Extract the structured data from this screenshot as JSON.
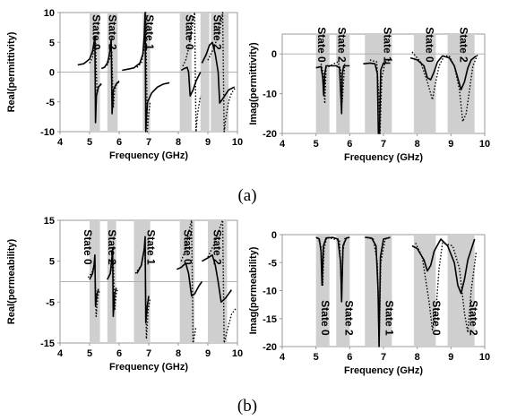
{
  "figure": {
    "caption_a": "(a)",
    "caption_b": "(b)"
  },
  "chart_data": [
    {
      "type": "line",
      "ylabel": "Real(permittivity)",
      "xlabel": "Frequency (GHz)",
      "xlim": [
        4,
        10
      ],
      "ylim": [
        -10,
        10
      ],
      "xticks": [
        "4",
        "5",
        "6",
        "7",
        "8",
        "9",
        "10"
      ],
      "yticks": [
        "10",
        "5",
        "0",
        "-5",
        "-10"
      ],
      "grid": false,
      "bands": [
        [
          5.0,
          5.35
        ],
        [
          5.6,
          5.95
        ],
        [
          6.8,
          7.05
        ],
        [
          8.05,
          8.45
        ],
        [
          8.75,
          9.05
        ],
        [
          9.1,
          9.7
        ]
      ],
      "labels": [
        {
          "text": "State 0",
          "x": 5.2
        },
        {
          "text": "State 2",
          "x": 5.75
        },
        {
          "text": "State 1",
          "x": 7.0
        },
        {
          "text": "State 0",
          "x": 8.35
        },
        {
          "text": "State 2",
          "x": 9.3
        }
      ],
      "series": [
        {
          "style": "solid",
          "x": [
            4.6,
            4.8,
            5.0,
            5.1,
            5.15,
            5.18,
            5.2,
            5.23,
            5.3,
            5.4
          ],
          "y": [
            1.2,
            1.4,
            2.2,
            3.5,
            5.0,
            6.0,
            -8.5,
            -4.0,
            -2.5,
            -2.0
          ]
        },
        {
          "style": "dotted",
          "x": [
            5.0,
            5.1,
            5.15,
            5.2,
            5.25,
            5.3,
            5.4
          ],
          "y": [
            1.5,
            2.5,
            4.0,
            5.0,
            -3.5,
            -2.5,
            -1.8
          ]
        },
        {
          "style": "solid",
          "x": [
            5.4,
            5.5,
            5.6,
            5.65,
            5.7,
            5.73,
            5.76,
            5.8,
            5.9,
            6.0
          ],
          "y": [
            0.6,
            0.8,
            1.5,
            2.5,
            4.0,
            5.5,
            -7.0,
            -3.0,
            -2.0,
            -1.5
          ]
        },
        {
          "style": "dotted",
          "x": [
            5.5,
            5.6,
            5.7,
            5.75,
            5.8,
            5.85,
            5.9,
            6.0
          ],
          "y": [
            0.8,
            1.2,
            2.5,
            3.5,
            -6.0,
            -3.0,
            -2.2,
            -1.6
          ]
        },
        {
          "style": "solid",
          "x": [
            6.1,
            6.3,
            6.5,
            6.7,
            6.8,
            6.85,
            6.88,
            6.9,
            6.93,
            6.96
          ],
          "y": [
            0.3,
            0.5,
            0.7,
            1.5,
            3.0,
            6.0,
            10.0,
            -10.0,
            -7.0,
            -5.0
          ]
        },
        {
          "style": "dotted",
          "x": [
            6.6,
            6.75,
            6.85,
            6.9,
            6.95,
            7.0,
            7.05
          ],
          "y": [
            0.8,
            1.5,
            4.0,
            10.0,
            -10.0,
            -7.0,
            -5.0
          ]
        },
        {
          "style": "solid",
          "x": [
            6.96,
            7.1,
            7.3,
            7.5,
            7.7
          ],
          "y": [
            -5.0,
            -3.5,
            -2.5,
            -2.0,
            -1.8
          ]
        },
        {
          "style": "solid",
          "x": [
            8.1,
            8.2,
            8.3,
            8.35,
            8.4,
            8.5,
            8.6,
            8.75
          ],
          "y": [
            0.3,
            0.6,
            0.8,
            0.0,
            -4.0,
            -3.0,
            -1.5,
            0.0
          ]
        },
        {
          "style": "dotted",
          "x": [
            8.15,
            8.25,
            8.35,
            8.45,
            8.55,
            8.6,
            8.65,
            8.75
          ],
          "y": [
            1.0,
            2.0,
            4.0,
            7.0,
            10.0,
            -10.0,
            -7.0,
            -4.0
          ]
        },
        {
          "style": "solid",
          "x": [
            8.8,
            8.95,
            9.05,
            9.15,
            9.25,
            9.35,
            9.4,
            9.5,
            9.7,
            9.9
          ],
          "y": [
            1.5,
            3.0,
            4.5,
            5.0,
            3.0,
            0.0,
            -5.2,
            -4.5,
            -3.0,
            -2.5
          ]
        },
        {
          "style": "dotted",
          "x": [
            9.0,
            9.2,
            9.4,
            9.5,
            9.55,
            9.6,
            9.7,
            9.8,
            9.95
          ],
          "y": [
            2.0,
            4.0,
            7.0,
            10.0,
            -10.0,
            -8.0,
            -5.0,
            -3.5,
            -2.5
          ]
        }
      ]
    },
    {
      "type": "line",
      "ylabel": "Imag(permittivity)",
      "xlabel": "Frequency (GHz)",
      "xlim": [
        4,
        10
      ],
      "ylim": [
        -20,
        5
      ],
      "xticks": [
        "4",
        "5",
        "6",
        "7",
        "8",
        "9",
        "10"
      ],
      "yticks": [
        "0",
        "-10",
        "-20"
      ],
      "grid": false,
      "bands": [
        [
          5.0,
          5.4
        ],
        [
          5.6,
          6.0
        ],
        [
          6.45,
          7.25
        ],
        [
          7.9,
          8.55
        ],
        [
          8.9,
          9.7
        ]
      ],
      "labels": [
        {
          "text": "State 0",
          "x": 5.15
        },
        {
          "text": "State 2",
          "x": 5.75
        },
        {
          "text": "State 1",
          "x": 7.1
        },
        {
          "text": "State 0",
          "x": 8.35
        },
        {
          "text": "State 2",
          "x": 9.35
        }
      ],
      "series": [
        {
          "style": "solid",
          "x": [
            5.0,
            5.15,
            5.2,
            5.23,
            5.26,
            5.3,
            5.45,
            5.6,
            5.7,
            5.76,
            5.78,
            5.82,
            5.9,
            6.0
          ],
          "y": [
            -3.5,
            -3.2,
            -6.0,
            -10.5,
            -5.0,
            -3.0,
            -3.0,
            -3.0,
            -3.5,
            -15.0,
            -5.0,
            -3.0,
            -3.0,
            -3.0
          ]
        },
        {
          "style": "dotted",
          "x": [
            5.15,
            5.22,
            5.26,
            5.3,
            5.65,
            5.73,
            5.78,
            5.85
          ],
          "y": [
            -2.5,
            -5.0,
            -12.5,
            -3.5,
            -2.0,
            -4.0,
            -12.0,
            -2.5
          ]
        },
        {
          "style": "solid",
          "x": [
            6.4,
            6.6,
            6.75,
            6.82,
            6.85,
            6.88,
            6.92,
            7.0,
            7.2
          ],
          "y": [
            -2.5,
            -2.3,
            -2.5,
            -5.0,
            -20.0,
            -20.0,
            -4.0,
            -2.3,
            -2.3
          ]
        },
        {
          "style": "dotted",
          "x": [
            6.6,
            6.8,
            6.86,
            6.9,
            6.95,
            7.05,
            7.2,
            7.3
          ],
          "y": [
            -1.5,
            -2.0,
            -10.0,
            -20.0,
            -6.0,
            -2.0,
            -1.5,
            -1.5
          ]
        },
        {
          "style": "solid",
          "x": [
            7.8,
            8.0,
            8.2,
            8.3,
            8.4,
            8.5,
            8.6,
            8.75,
            8.95,
            9.1,
            9.2,
            9.3,
            9.4,
            9.5,
            9.6,
            9.75
          ],
          "y": [
            -1.0,
            -1.5,
            -3.0,
            -6.0,
            -6.5,
            -4.5,
            -2.0,
            -0.5,
            -1.0,
            -3.0,
            -6.0,
            -9.0,
            -7.0,
            -3.5,
            -1.5,
            -0.5
          ]
        },
        {
          "style": "dotted",
          "x": [
            7.85,
            8.1,
            8.3,
            8.45,
            8.55,
            8.65,
            8.8,
            8.95,
            9.1,
            9.25,
            9.35,
            9.45,
            9.55,
            9.65,
            9.8
          ],
          "y": [
            0.5,
            -2.0,
            -7.0,
            -11.5,
            -7.0,
            -3.0,
            -0.5,
            -0.5,
            -3.0,
            -9.0,
            -17.0,
            -15.0,
            -9.0,
            -3.0,
            0.0
          ]
        }
      ]
    },
    {
      "type": "line",
      "ylabel": "Real(permeability)",
      "xlabel": "Frequency (GHz)",
      "xlim": [
        4,
        10
      ],
      "ylim": [
        -15,
        15
      ],
      "xticks": [
        "4",
        "5",
        "6",
        "7",
        "8",
        "9",
        "10"
      ],
      "yticks": [
        "15",
        "5",
        "-5",
        "-15"
      ],
      "grid": false,
      "bands": [
        [
          5.0,
          5.35
        ],
        [
          5.6,
          5.9
        ],
        [
          6.5,
          7.05
        ],
        [
          8.05,
          8.55
        ],
        [
          9.0,
          9.65
        ]
      ],
      "labels": [
        {
          "text": "State 0",
          "x": 4.92
        },
        {
          "text": "State 2",
          "x": 5.73
        },
        {
          "text": "State 1",
          "x": 7.05
        },
        {
          "text": "State 0",
          "x": 8.3
        },
        {
          "text": "State 2",
          "x": 9.3
        }
      ],
      "series": [
        {
          "style": "solid",
          "x": [
            5.0,
            5.1,
            5.15,
            5.18,
            5.2,
            5.25,
            5.3
          ],
          "y": [
            0.5,
            2.0,
            4.0,
            6.5,
            -6.0,
            -3.0,
            -1.8
          ]
        },
        {
          "style": "dotted",
          "x": [
            4.95,
            5.1,
            5.18,
            5.22,
            5.28,
            5.35
          ],
          "y": [
            1.0,
            2.5,
            5.0,
            -8.5,
            -3.5,
            -2.0
          ]
        },
        {
          "style": "solid",
          "x": [
            5.6,
            5.7,
            5.75,
            5.78,
            5.8,
            5.85,
            5.9
          ],
          "y": [
            0.5,
            2.0,
            5.5,
            8.0,
            -8.5,
            -3.0,
            -1.5
          ]
        },
        {
          "style": "dotted",
          "x": [
            5.6,
            5.7,
            5.8,
            5.85,
            5.9,
            5.95
          ],
          "y": [
            0.5,
            2.0,
            5.0,
            -7.0,
            -3.0,
            -1.8
          ]
        },
        {
          "style": "solid",
          "x": [
            6.6,
            6.75,
            6.85,
            6.88,
            6.9,
            6.95,
            7.0
          ],
          "y": [
            2.0,
            4.0,
            8.0,
            11.0,
            -10.0,
            -6.0,
            -3.5
          ]
        },
        {
          "style": "dotted",
          "x": [
            6.55,
            6.75,
            6.87,
            6.92,
            6.98,
            7.05
          ],
          "y": [
            2.0,
            4.0,
            9.0,
            -14.0,
            -7.0,
            -4.0
          ]
        },
        {
          "style": "solid",
          "x": [
            7.95,
            8.1,
            8.25,
            8.35,
            8.45,
            8.55,
            8.7,
            8.8
          ],
          "y": [
            3.0,
            3.5,
            4.5,
            2.0,
            -3.5,
            -3.0,
            -1.0,
            0.0
          ]
        },
        {
          "style": "dotted",
          "x": [
            8.1,
            8.25,
            8.35,
            8.45,
            8.5,
            8.55,
            8.6
          ],
          "y": [
            5.0,
            8.0,
            12.0,
            15.0,
            -15.0,
            -13.0,
            -11.0
          ]
        },
        {
          "style": "solid",
          "x": [
            8.8,
            9.0,
            9.15,
            9.25,
            9.35,
            9.45,
            9.6,
            9.8
          ],
          "y": [
            5.0,
            5.8,
            6.5,
            4.0,
            0.0,
            -5.0,
            -4.0,
            -2.0
          ]
        },
        {
          "style": "dotted",
          "x": [
            9.0,
            9.2,
            9.4,
            9.5,
            9.55,
            9.65,
            9.8,
            9.95
          ],
          "y": [
            6.0,
            9.0,
            13.0,
            15.0,
            -15.0,
            -12.0,
            -8.0,
            -6.5
          ]
        }
      ]
    },
    {
      "type": "line",
      "ylabel": "Imag(permeability)",
      "xlabel": "Frequency (GHz)",
      "xlim": [
        4,
        10
      ],
      "ylim": [
        -20,
        0
      ],
      "xticks": [
        "4",
        "5",
        "6",
        "7",
        "8",
        "9",
        "10"
      ],
      "yticks": [
        "0",
        "-5",
        "-10",
        "-15",
        "-20"
      ],
      "grid": false,
      "bands": [
        [
          5.0,
          5.4
        ],
        [
          5.6,
          6.0
        ],
        [
          6.45,
          7.25
        ],
        [
          7.9,
          8.55
        ],
        [
          8.9,
          9.7
        ]
      ],
      "labels": [
        {
          "text": "State 0",
          "x": 5.25
        },
        {
          "text": "State 2",
          "x": 5.95
        },
        {
          "text": "State 1",
          "x": 7.15
        },
        {
          "text": "State 0",
          "x": 8.55
        },
        {
          "text": "State 2",
          "x": 9.65
        }
      ],
      "series": [
        {
          "style": "solid",
          "x": [
            5.0,
            5.1,
            5.15,
            5.18,
            5.22,
            5.3,
            5.5,
            5.65,
            5.73,
            5.76,
            5.8,
            5.9,
            6.0
          ],
          "y": [
            -0.5,
            -0.8,
            -3.0,
            -9.0,
            -2.0,
            -0.6,
            -0.5,
            -0.8,
            -5.0,
            -12.0,
            -2.0,
            -0.6,
            -0.5
          ]
        },
        {
          "style": "dotted",
          "x": [
            5.05,
            5.15,
            5.2,
            5.24,
            5.32,
            5.7,
            5.76,
            5.8,
            5.86
          ],
          "y": [
            -0.5,
            -2.0,
            -9.0,
            -2.5,
            -0.5,
            -1.0,
            -11.0,
            -3.0,
            -0.6
          ]
        },
        {
          "style": "solid",
          "x": [
            6.45,
            6.65,
            6.78,
            6.84,
            6.87,
            6.91,
            7.0,
            7.2
          ],
          "y": [
            -0.5,
            -0.6,
            -2.0,
            -10.0,
            -20.0,
            -4.0,
            -0.8,
            -0.5
          ]
        },
        {
          "style": "dotted",
          "x": [
            6.5,
            6.7,
            6.82,
            6.87,
            6.92,
            7.05,
            7.2
          ],
          "y": [
            -0.5,
            -0.8,
            -5.0,
            -20.0,
            -5.0,
            -0.8,
            -0.5
          ]
        },
        {
          "style": "solid",
          "x": [
            7.85,
            8.0,
            8.2,
            8.3,
            8.4,
            8.5,
            8.7,
            8.9,
            9.1,
            9.2,
            9.3,
            9.4,
            9.5,
            9.7
          ],
          "y": [
            -2.0,
            -2.5,
            -4.5,
            -6.5,
            -5.5,
            -3.0,
            -0.8,
            -2.0,
            -5.0,
            -9.0,
            -10.5,
            -8.0,
            -4.5,
            -0.8
          ]
        },
        {
          "style": "dotted",
          "x": [
            7.95,
            8.15,
            8.35,
            8.45,
            8.55,
            8.65,
            8.75,
            9.05,
            9.25,
            9.4,
            9.5,
            9.6,
            9.75
          ],
          "y": [
            -1.5,
            -4.0,
            -12.0,
            -17.0,
            -14.0,
            -6.0,
            -1.5,
            -2.0,
            -6.0,
            -14.0,
            -17.5,
            -10.0,
            -3.0
          ]
        }
      ]
    }
  ]
}
